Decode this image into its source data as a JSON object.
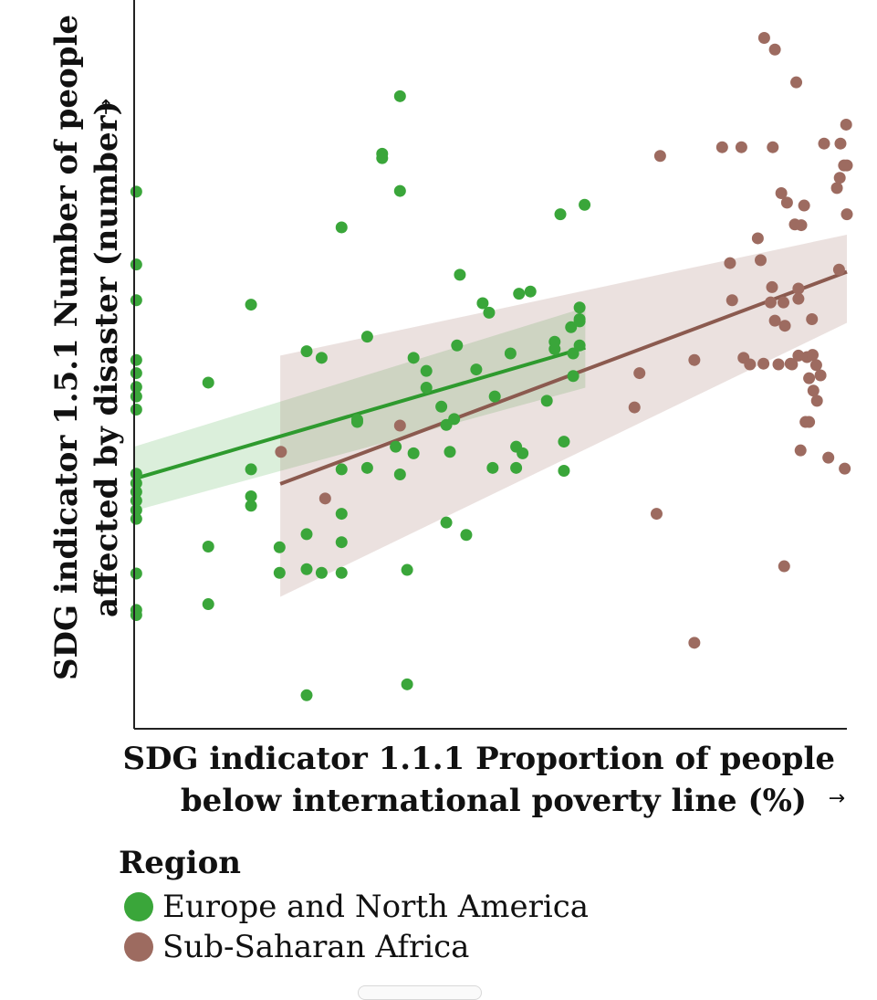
{
  "chart_data": {
    "type": "scatter",
    "title": "",
    "xlabel_lines": [
      "SDG indicator 1.1.1 Proportion of people",
      "below international poverty line (%)"
    ],
    "ylabel_lines": [
      "SDG indicator 1.5.1 Number of people",
      "affected by disaster (number)"
    ],
    "x_arrow": "→",
    "y_arrow": "→",
    "xlim": [
      0,
      100
    ],
    "ylim": [
      0,
      100
    ],
    "grid": false,
    "legend": {
      "title": "Region",
      "position": "bottom-left",
      "entries": [
        "Europe and North America",
        "Sub-Saharan Africa"
      ]
    },
    "series": [
      {
        "name": "Europe and North America",
        "color": "#3aa63a",
        "trend": {
          "x": [
            0,
            63.3
          ],
          "y": [
            34.3,
            52.3
          ]
        },
        "ci_band": {
          "x": [
            0,
            63.3
          ],
          "upper": [
            38.7,
            57.8
          ],
          "lower": [
            29.9,
            46.8
          ]
        },
        "points": [
          [
            0.3,
            73.7
          ],
          [
            0.3,
            63.7
          ],
          [
            0.3,
            58.8
          ],
          [
            0.3,
            50.6
          ],
          [
            0.3,
            48.8
          ],
          [
            0.3,
            46.9
          ],
          [
            0.3,
            45.6
          ],
          [
            0.3,
            43.8
          ],
          [
            0.3,
            35.0
          ],
          [
            0.3,
            33.7
          ],
          [
            0.3,
            32.5
          ],
          [
            0.3,
            31.3
          ],
          [
            0.3,
            30.0
          ],
          [
            0.3,
            28.8
          ],
          [
            0.3,
            21.3
          ],
          [
            0.3,
            16.3
          ],
          [
            0.3,
            15.6
          ],
          [
            10.4,
            47.5
          ],
          [
            10.4,
            25.0
          ],
          [
            10.4,
            17.1
          ],
          [
            16.4,
            58.2
          ],
          [
            16.4,
            35.6
          ],
          [
            16.4,
            31.9
          ],
          [
            16.4,
            30.6
          ],
          [
            20.4,
            24.9
          ],
          [
            20.4,
            21.4
          ],
          [
            24.2,
            51.8
          ],
          [
            24.2,
            26.7
          ],
          [
            24.2,
            21.9
          ],
          [
            24.2,
            4.6
          ],
          [
            26.3,
            50.9
          ],
          [
            26.3,
            21.4
          ],
          [
            29.1,
            68.8
          ],
          [
            29.1,
            35.6
          ],
          [
            29.1,
            29.5
          ],
          [
            29.1,
            25.6
          ],
          [
            29.1,
            21.4
          ],
          [
            31.3,
            42.4
          ],
          [
            31.3,
            42.1
          ],
          [
            32.7,
            53.8
          ],
          [
            32.7,
            35.8
          ],
          [
            34.8,
            78.9
          ],
          [
            34.8,
            78.3
          ],
          [
            36.7,
            38.7
          ],
          [
            37.3,
            86.8
          ],
          [
            37.3,
            73.8
          ],
          [
            37.3,
            34.9
          ],
          [
            38.3,
            21.8
          ],
          [
            38.3,
            6.1
          ],
          [
            39.2,
            50.9
          ],
          [
            39.2,
            37.8
          ],
          [
            41.0,
            49.1
          ],
          [
            41.0,
            46.8
          ],
          [
            43.1,
            44.2
          ],
          [
            43.8,
            41.7
          ],
          [
            43.8,
            28.3
          ],
          [
            44.3,
            38.0
          ],
          [
            44.9,
            42.5
          ],
          [
            45.3,
            52.6
          ],
          [
            45.7,
            62.3
          ],
          [
            46.6,
            26.6
          ],
          [
            48.0,
            49.3
          ],
          [
            48.9,
            58.4
          ],
          [
            49.8,
            57.1
          ],
          [
            50.3,
            35.8
          ],
          [
            50.6,
            45.6
          ],
          [
            52.8,
            51.5
          ],
          [
            53.6,
            38.7
          ],
          [
            53.6,
            35.8
          ],
          [
            54.0,
            59.7
          ],
          [
            54.5,
            37.8
          ],
          [
            55.6,
            60.0
          ],
          [
            57.9,
            45.0
          ],
          [
            59.0,
            53.1
          ],
          [
            59.0,
            52.1
          ],
          [
            59.8,
            70.6
          ],
          [
            60.3,
            39.4
          ],
          [
            60.3,
            35.4
          ],
          [
            61.3,
            55.1
          ],
          [
            61.6,
            51.5
          ],
          [
            61.6,
            48.4
          ],
          [
            62.5,
            57.8
          ],
          [
            62.5,
            56.2
          ],
          [
            62.5,
            55.9
          ],
          [
            62.5,
            52.6
          ],
          [
            63.2,
            71.9
          ]
        ]
      },
      {
        "name": "Sub-Saharan Africa",
        "color": "#9d6b60",
        "trend": {
          "x": [
            20.5,
            100
          ],
          "y": [
            33.6,
            62.7
          ]
        },
        "ci_band": {
          "x": [
            20.5,
            100
          ],
          "upper": [
            51.2,
            67.8
          ],
          "lower": [
            18.1,
            55.7
          ]
        },
        "points": [
          [
            20.6,
            38.0
          ],
          [
            26.8,
            31.6
          ],
          [
            37.3,
            41.6
          ],
          [
            70.2,
            44.1
          ],
          [
            70.9,
            48.8
          ],
          [
            73.3,
            29.5
          ],
          [
            73.8,
            78.6
          ],
          [
            78.6,
            11.8
          ],
          [
            78.6,
            50.6
          ],
          [
            82.5,
            79.8
          ],
          [
            83.6,
            63.9
          ],
          [
            83.9,
            58.8
          ],
          [
            85.2,
            79.8
          ],
          [
            85.5,
            50.9
          ],
          [
            86.4,
            50.0
          ],
          [
            87.5,
            67.3
          ],
          [
            87.9,
            64.3
          ],
          [
            88.3,
            50.1
          ],
          [
            88.4,
            94.8
          ],
          [
            89.3,
            58.5
          ],
          [
            89.5,
            60.6
          ],
          [
            89.6,
            79.8
          ],
          [
            89.9,
            93.2
          ],
          [
            89.9,
            56.0
          ],
          [
            90.4,
            50.0
          ],
          [
            90.8,
            73.5
          ],
          [
            91.1,
            58.5
          ],
          [
            91.2,
            22.3
          ],
          [
            91.3,
            55.3
          ],
          [
            91.6,
            72.2
          ],
          [
            92.1,
            50.1
          ],
          [
            92.3,
            50.0
          ],
          [
            92.7,
            69.2
          ],
          [
            92.9,
            88.7
          ],
          [
            93.2,
            60.4
          ],
          [
            93.2,
            59.0
          ],
          [
            93.2,
            51.2
          ],
          [
            93.5,
            38.2
          ],
          [
            93.6,
            69.1
          ],
          [
            94.0,
            71.8
          ],
          [
            94.2,
            42.1
          ],
          [
            94.4,
            51.0
          ],
          [
            94.7,
            48.1
          ],
          [
            94.7,
            42.1
          ],
          [
            95.1,
            56.2
          ],
          [
            95.2,
            51.3
          ],
          [
            95.3,
            46.4
          ],
          [
            95.7,
            49.9
          ],
          [
            95.8,
            45.0
          ],
          [
            96.3,
            48.5
          ],
          [
            96.8,
            80.3
          ],
          [
            97.4,
            37.2
          ],
          [
            98.6,
            74.2
          ],
          [
            98.9,
            63.0
          ],
          [
            99.0,
            75.6
          ],
          [
            99.1,
            80.3
          ],
          [
            99.6,
            77.3
          ],
          [
            99.7,
            35.7
          ],
          [
            99.9,
            82.9
          ],
          [
            100.0,
            70.6
          ],
          [
            100.0,
            77.3
          ]
        ]
      }
    ]
  }
}
